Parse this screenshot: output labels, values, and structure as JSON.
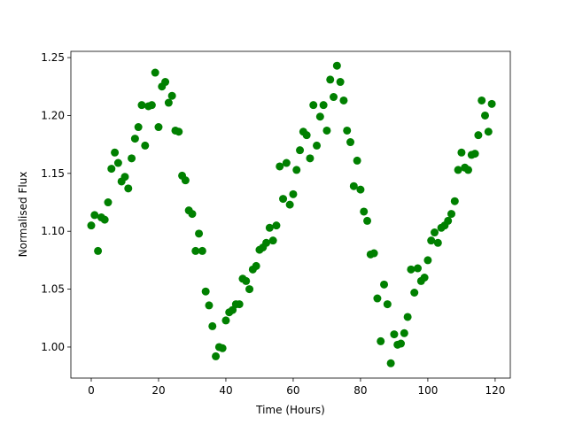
{
  "chart_data": {
    "type": "scatter",
    "xlabel": "Time (Hours)",
    "ylabel": "Normalised Flux",
    "color": "#008000",
    "xlim": [
      -6.05,
      124.5
    ],
    "ylim": [
      0.9732,
      1.2554
    ],
    "xticks": [
      0,
      20,
      40,
      60,
      80,
      100,
      120
    ],
    "yticks": [
      {
        "value": 1,
        "label": "1.00"
      },
      1.05,
      {
        "value": 1.1,
        "label": "1.10"
      },
      1.15,
      {
        "value": 1.2,
        "label": "1.20"
      },
      1.25
    ],
    "grid": false,
    "x": [
      0,
      1,
      2,
      3,
      4,
      5,
      6,
      7,
      8,
      9,
      10,
      11,
      12,
      13,
      14,
      15,
      16,
      17,
      18,
      19,
      20,
      21,
      22,
      23,
      24,
      25,
      26,
      27,
      28,
      29,
      30,
      31,
      32,
      33,
      34,
      35,
      36,
      37,
      38,
      39,
      40,
      41,
      42,
      43,
      44,
      45,
      46,
      47,
      48,
      49,
      50,
      51,
      52,
      53,
      54,
      55,
      56,
      57,
      58,
      59,
      60,
      61,
      62,
      63,
      64,
      65,
      66,
      67,
      68,
      69,
      70,
      71,
      72,
      73,
      74,
      75,
      76,
      77,
      78,
      79,
      80,
      81,
      82,
      83,
      84,
      85,
      86,
      87,
      88,
      89,
      90,
      91,
      92,
      93,
      94,
      95,
      96,
      97,
      98,
      99,
      100,
      101,
      102,
      103,
      104,
      105,
      106,
      107,
      108,
      109,
      110,
      111,
      112,
      113,
      114,
      115,
      116,
      117,
      118,
      119
    ],
    "values": [
      1.105,
      1.114,
      1.083,
      1.112,
      1.11,
      1.125,
      1.154,
      1.168,
      1.159,
      1.143,
      1.147,
      1.137,
      1.163,
      1.18,
      1.19,
      1.209,
      1.174,
      1.208,
      1.209,
      1.237,
      1.19,
      1.225,
      1.229,
      1.211,
      1.217,
      1.187,
      1.186,
      1.148,
      1.144,
      1.118,
      1.115,
      1.083,
      1.098,
      1.083,
      1.048,
      1.036,
      1.018,
      0.992,
      1.0,
      0.999,
      1.023,
      1.03,
      1.032,
      1.037,
      1.037,
      1.059,
      1.057,
      1.05,
      1.067,
      1.07,
      1.084,
      1.086,
      1.09,
      1.103,
      1.092,
      1.105,
      1.156,
      1.128,
      1.159,
      1.123,
      1.132,
      1.153,
      1.17,
      1.186,
      1.183,
      1.163,
      1.209,
      1.174,
      1.199,
      1.209,
      1.187,
      1.231,
      1.216,
      1.243,
      1.229,
      1.213,
      1.187,
      1.177,
      1.139,
      1.161,
      1.136,
      1.117,
      1.109,
      1.08,
      1.081,
      1.042,
      1.005,
      1.054,
      1.037,
      0.986,
      1.011,
      1.002,
      1.003,
      1.012,
      1.026,
      1.067,
      1.047,
      1.068,
      1.057,
      1.06,
      1.075,
      1.092,
      1.099,
      1.09,
      1.103,
      1.105,
      1.109,
      1.115,
      1.126,
      1.153,
      1.168,
      1.155,
      1.153,
      1.166,
      1.167,
      1.183,
      1.213,
      1.2,
      1.186,
      1.21
    ]
  }
}
